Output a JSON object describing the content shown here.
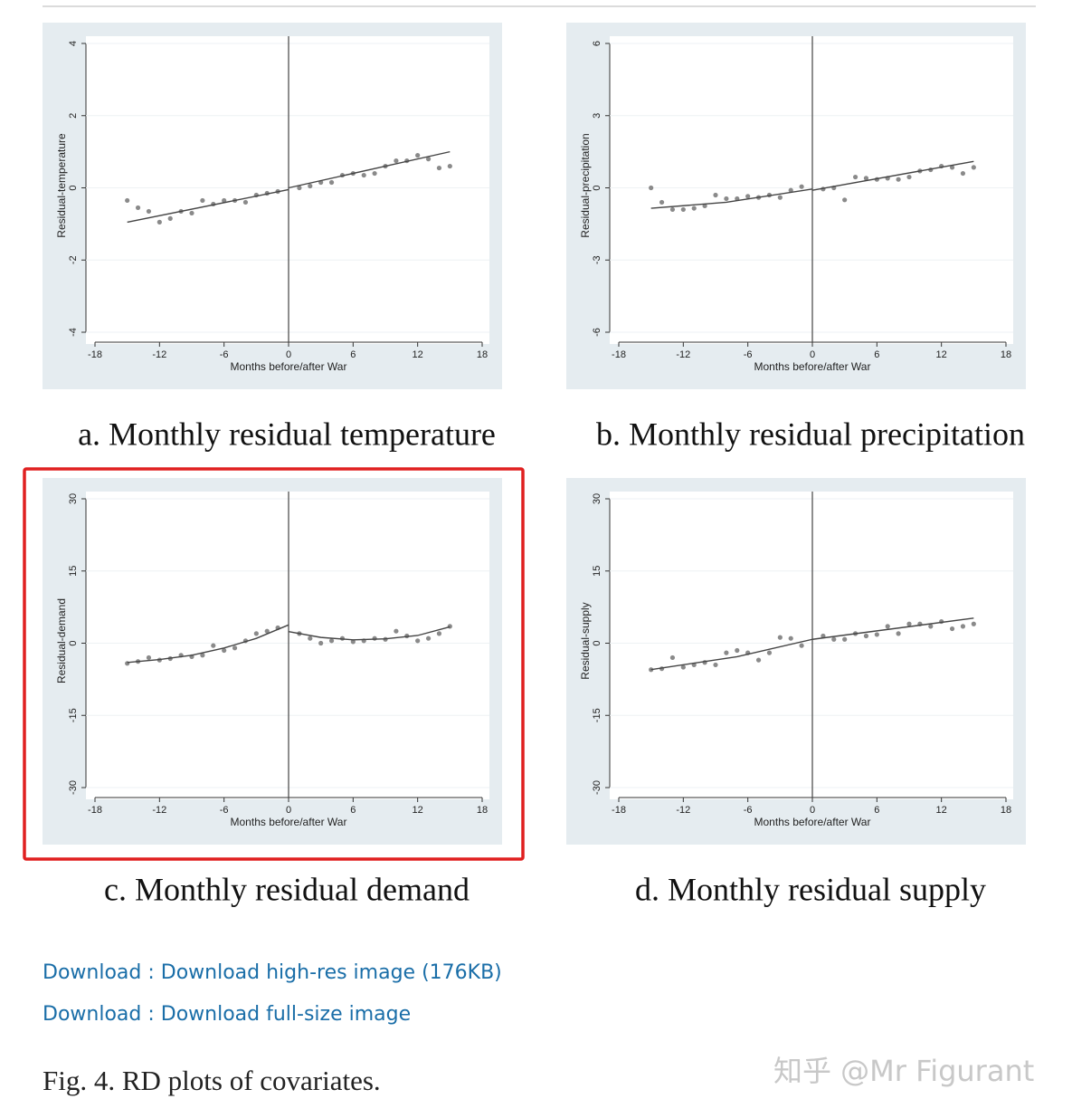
{
  "chart_data": [
    {
      "type": "scatter",
      "title": "a. Monthly residual temperature",
      "xlabel": "Months before/after War",
      "ylabel": "Residual-temperature",
      "xlim": [
        -18,
        18
      ],
      "xticks": [
        -18,
        -12,
        -6,
        0,
        6,
        12,
        18
      ],
      "ylim": [
        -4,
        4
      ],
      "yticks": [
        -4,
        -2,
        0,
        2,
        4
      ],
      "vline": 0,
      "grid": true,
      "x": [
        -15,
        -14,
        -13,
        -12,
        -11,
        -10,
        -9,
        -8,
        -7,
        -6,
        -5,
        -4,
        -3,
        -2,
        -1,
        1,
        2,
        3,
        4,
        5,
        6,
        7,
        8,
        9,
        10,
        11,
        12,
        13,
        14,
        15
      ],
      "series": [
        {
          "color": "#8a8a8a",
          "values": [
            -0.35,
            -0.55,
            -0.65,
            -0.95,
            -0.85,
            -0.65,
            -0.7,
            -0.35,
            -0.45,
            -0.35,
            -0.35,
            -0.4,
            -0.2,
            -0.15,
            -0.1,
            0.0,
            0.05,
            0.15,
            0.15,
            0.35,
            0.4,
            0.35,
            0.4,
            0.6,
            0.75,
            0.75,
            0.9,
            0.8,
            0.55,
            0.6
          ]
        }
      ],
      "lines": [
        {
          "color": "#444",
          "x": [
            -15,
            0
          ],
          "values": [
            -0.95,
            -0.05
          ]
        },
        {
          "color": "#444",
          "x": [
            0,
            15
          ],
          "values": [
            0.0,
            1.0
          ]
        }
      ]
    },
    {
      "type": "scatter",
      "title": "b. Monthly residual precipitation",
      "xlabel": "Months before/after War",
      "ylabel": "Residual-precipitation",
      "xlim": [
        -18,
        18
      ],
      "xticks": [
        -18,
        -12,
        -6,
        0,
        6,
        12,
        18
      ],
      "ylim": [
        -6,
        6
      ],
      "yticks": [
        -6,
        -3,
        0,
        3,
        6
      ],
      "vline": 0,
      "grid": true,
      "x": [
        -15,
        -14,
        -13,
        -12,
        -11,
        -10,
        -9,
        -8,
        -7,
        -6,
        -5,
        -4,
        -3,
        -2,
        -1,
        1,
        2,
        3,
        4,
        5,
        6,
        7,
        8,
        9,
        10,
        11,
        12,
        13,
        14,
        15
      ],
      "series": [
        {
          "color": "#8a8a8a",
          "values": [
            0.0,
            -0.6,
            -0.9,
            -0.9,
            -0.85,
            -0.75,
            -0.3,
            -0.45,
            -0.45,
            -0.35,
            -0.4,
            -0.3,
            -0.4,
            -0.1,
            0.05,
            -0.05,
            0.0,
            -0.5,
            0.45,
            0.4,
            0.35,
            0.4,
            0.35,
            0.45,
            0.7,
            0.75,
            0.9,
            0.85,
            0.6,
            0.85
          ]
        }
      ],
      "lines": [
        {
          "color": "#444",
          "x": [
            -15,
            -8,
            0
          ],
          "values": [
            -0.85,
            -0.6,
            -0.05
          ]
        },
        {
          "color": "#444",
          "x": [
            0,
            15
          ],
          "values": [
            -0.1,
            1.1
          ]
        }
      ]
    },
    {
      "type": "scatter",
      "title": "c. Monthly residual demand",
      "xlabel": "Months before/after War",
      "ylabel": "Residual-demand",
      "xlim": [
        -18,
        18
      ],
      "xticks": [
        -18,
        -12,
        -6,
        0,
        6,
        12,
        18
      ],
      "ylim": [
        -30,
        30
      ],
      "yticks": [
        -30,
        -15,
        0,
        15,
        30
      ],
      "vline": 0,
      "grid": true,
      "x": [
        -15,
        -14,
        -13,
        -12,
        -11,
        -10,
        -9,
        -8,
        -7,
        -6,
        -5,
        -4,
        -3,
        -2,
        -1,
        1,
        2,
        3,
        4,
        5,
        6,
        7,
        8,
        9,
        10,
        11,
        12,
        13,
        14,
        15
      ],
      "series": [
        {
          "color": "#8a8a8a",
          "values": [
            -4.2,
            -3.8,
            -3,
            -3.5,
            -3.2,
            -2.5,
            -2.8,
            -2.5,
            -0.5,
            -1.5,
            -1,
            0.5,
            2,
            2.5,
            3.2,
            2,
            1,
            0,
            0.5,
            1,
            0.3,
            0.5,
            1,
            0.8,
            2.5,
            1.5,
            0.5,
            1,
            2,
            3.5
          ]
        }
      ],
      "lines": [
        {
          "color": "#444",
          "x": [
            -15,
            -12,
            -9,
            -6,
            -3,
            0
          ],
          "values": [
            -4,
            -3.4,
            -2.5,
            -1,
            1,
            3.8
          ]
        },
        {
          "color": "#444",
          "x": [
            0,
            3,
            6,
            9,
            12,
            15
          ],
          "values": [
            2.4,
            1.2,
            0.7,
            0.9,
            1.6,
            3.4
          ]
        }
      ]
    },
    {
      "type": "scatter",
      "title": "d. Monthly residual supply",
      "xlabel": "Months before/after War",
      "ylabel": "Residual-supply",
      "xlim": [
        -18,
        18
      ],
      "xticks": [
        -18,
        -12,
        -6,
        0,
        6,
        12,
        18
      ],
      "ylim": [
        -30,
        30
      ],
      "yticks": [
        -30,
        -15,
        0,
        15,
        30
      ],
      "vline": 0,
      "grid": true,
      "x": [
        -15,
        -14,
        -13,
        -12,
        -11,
        -10,
        -9,
        -8,
        -7,
        -6,
        -5,
        -4,
        -3,
        -2,
        -1,
        1,
        2,
        3,
        4,
        5,
        6,
        7,
        8,
        9,
        10,
        11,
        12,
        13,
        14,
        15
      ],
      "series": [
        {
          "color": "#8a8a8a",
          "values": [
            -5.5,
            -5.3,
            -3,
            -5,
            -4.5,
            -4,
            -4.5,
            -2,
            -1.5,
            -2,
            -3.5,
            -2,
            1.2,
            1,
            -0.5,
            1.5,
            0.8,
            0.8,
            2,
            1.5,
            1.8,
            3.5,
            2,
            4,
            4,
            3.5,
            4.5,
            3,
            3.5,
            4
          ]
        }
      ],
      "lines": [
        {
          "color": "#444",
          "x": [
            -15,
            -7,
            0
          ],
          "values": [
            -5.5,
            -2.8,
            0.8
          ]
        },
        {
          "color": "#444",
          "x": [
            0,
            15
          ],
          "values": [
            0.8,
            5.2
          ]
        }
      ]
    }
  ],
  "links": [
    "Download : Download high-res image (176KB)",
    "Download : Download full-size image"
  ],
  "figure_caption": "Fig. 4. RD plots of covariates.",
  "watermark": "知乎 @Mr Figurant"
}
